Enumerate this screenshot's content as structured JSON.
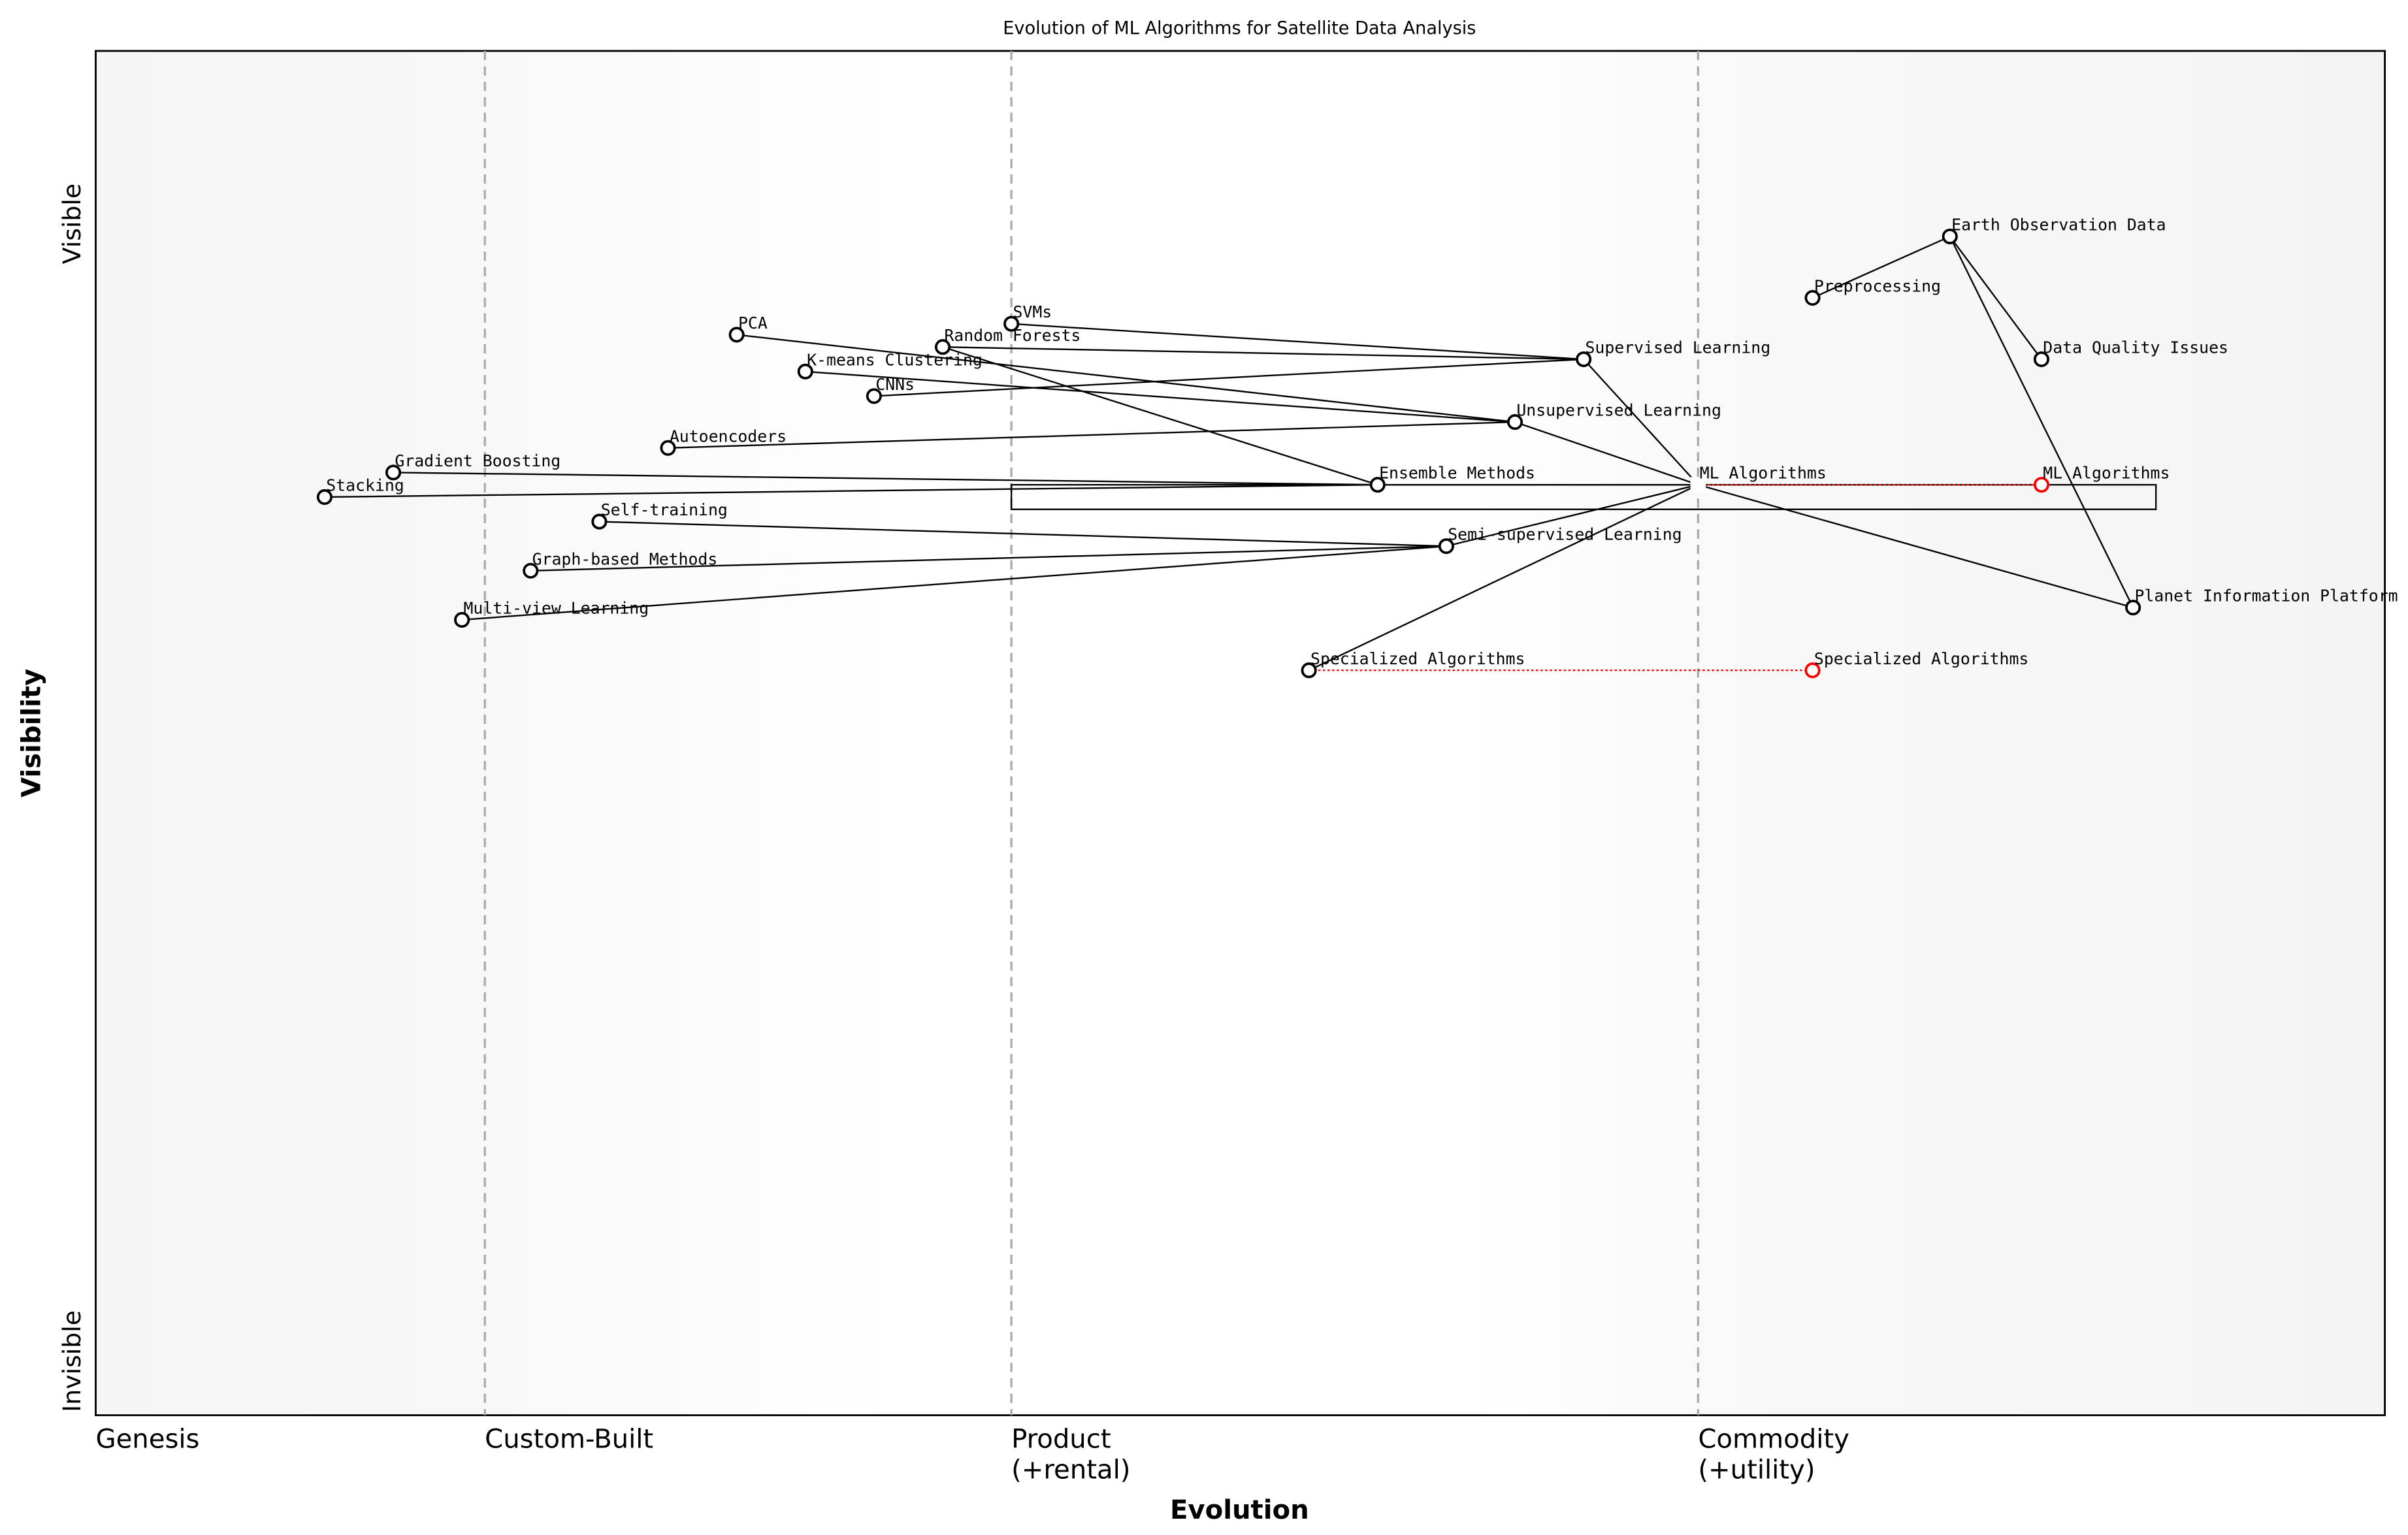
{
  "chart_data": {
    "type": "wardley-map",
    "title": "Evolution of ML Algorithms for Satellite Data Analysis",
    "xlabel": "Evolution",
    "ylabel": "Visibility",
    "xlim": [
      0,
      1
    ],
    "ylim": [
      0,
      1
    ],
    "x_stages": [
      {
        "label": "Genesis",
        "x": 0
      },
      {
        "label": "Custom-Built",
        "x": 0.17
      },
      {
        "label": "Product\n(+rental)",
        "x": 0.4
      },
      {
        "label": "Commodity\n(+utility)",
        "x": 0.7
      }
    ],
    "y_labels": {
      "top": "Visible",
      "bottom": "Invisible"
    },
    "colors": {
      "node": "#000000",
      "evolve": "#ff0000",
      "stage_dash": "#aaaaaa",
      "edge_bg": "#f5f5f5"
    },
    "nodes": [
      {
        "id": "eod",
        "label": "Earth Observation Data",
        "x": 0.81,
        "y": 0.864
      },
      {
        "id": "pre",
        "label": "Preprocessing",
        "x": 0.75,
        "y": 0.819
      },
      {
        "id": "dqi",
        "label": "Data Quality Issues",
        "x": 0.85,
        "y": 0.774
      },
      {
        "id": "sup",
        "label": "Supervised Learning",
        "x": 0.65,
        "y": 0.774
      },
      {
        "id": "uns",
        "label": "Unsupervised Learning",
        "x": 0.62,
        "y": 0.728
      },
      {
        "id": "ml",
        "label": "ML Algorithms",
        "x": 0.7,
        "y": 0.682,
        "anchor": true
      },
      {
        "id": "ens",
        "label": "Ensemble Methods",
        "x": 0.56,
        "y": 0.682
      },
      {
        "id": "semi",
        "label": "Semi-supervised Learning",
        "x": 0.59,
        "y": 0.637
      },
      {
        "id": "pip",
        "label": "Planet Information Platform",
        "x": 0.89,
        "y": 0.592
      },
      {
        "id": "spec",
        "label": "Specialized Algorithms",
        "x": 0.53,
        "y": 0.546
      },
      {
        "id": "svm",
        "label": "SVMs",
        "x": 0.4,
        "y": 0.8
      },
      {
        "id": "rf",
        "label": "Random Forests",
        "x": 0.37,
        "y": 0.783
      },
      {
        "id": "pca",
        "label": "PCA",
        "x": 0.28,
        "y": 0.792
      },
      {
        "id": "km",
        "label": "K-means Clustering",
        "x": 0.31,
        "y": 0.765
      },
      {
        "id": "cnn",
        "label": "CNNs",
        "x": 0.34,
        "y": 0.747
      },
      {
        "id": "ae",
        "label": "Autoencoders",
        "x": 0.25,
        "y": 0.709
      },
      {
        "id": "gb",
        "label": "Gradient Boosting",
        "x": 0.13,
        "y": 0.691
      },
      {
        "id": "stk",
        "label": "Stacking",
        "x": 0.1,
        "y": 0.673
      },
      {
        "id": "st",
        "label": "Self-training",
        "x": 0.22,
        "y": 0.655
      },
      {
        "id": "gbm",
        "label": "Graph-based Methods",
        "x": 0.19,
        "y": 0.619
      },
      {
        "id": "mv",
        "label": "Multi-view Learning",
        "x": 0.16,
        "y": 0.583
      }
    ],
    "evolved": [
      {
        "from": "ml",
        "label": "ML Algorithms",
        "x": 0.85,
        "y": 0.682
      },
      {
        "from": "spec",
        "label": "Specialized Algorithms",
        "x": 0.75,
        "y": 0.546
      }
    ],
    "edges": [
      [
        "eod",
        "pre"
      ],
      [
        "eod",
        "dqi"
      ],
      [
        "eod",
        "pip"
      ],
      [
        "ml",
        "pip"
      ],
      [
        "ml",
        "sup"
      ],
      [
        "ml",
        "uns"
      ],
      [
        "ml",
        "ens"
      ],
      [
        "ml",
        "semi"
      ],
      [
        "ml",
        "spec"
      ],
      [
        "svm",
        "sup"
      ],
      [
        "rf",
        "sup"
      ],
      [
        "cnn",
        "sup"
      ],
      [
        "pca",
        "uns"
      ],
      [
        "km",
        "uns"
      ],
      [
        "ae",
        "uns"
      ],
      [
        "rf",
        "ens"
      ],
      [
        "gb",
        "ens"
      ],
      [
        "stk",
        "ens"
      ],
      [
        "st",
        "semi"
      ],
      [
        "gbm",
        "semi"
      ],
      [
        "mv",
        "semi"
      ]
    ],
    "box": {
      "x0": 0.4,
      "x1": 0.9,
      "y0": 0.664,
      "y1": 0.682
    }
  }
}
